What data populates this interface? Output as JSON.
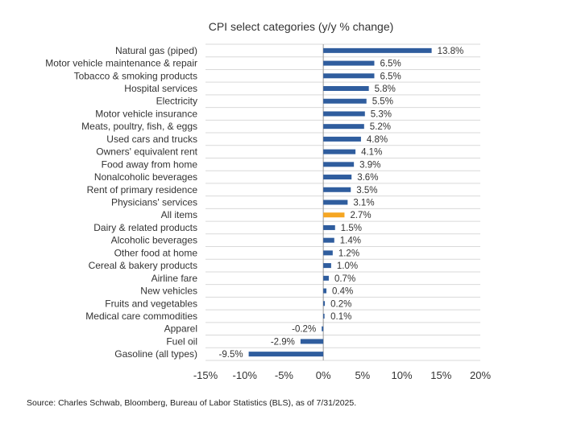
{
  "chart_data": {
    "type": "bar",
    "orientation": "horizontal",
    "title": "CPI select categories (y/y % change)",
    "categories": [
      "Natural gas (piped)",
      "Motor vehicle maintenance & repair",
      "Tobacco & smoking products",
      "Hospital services",
      "Electricity",
      "Motor vehicle insurance",
      "Meats, poultry, fish, & eggs",
      "Used cars and trucks",
      "Owners' equivalent rent",
      "Food away from home",
      "Nonalcoholic beverages",
      "Rent of primary residence",
      "Physicians' services",
      "All items",
      "Dairy & related products",
      "Alcoholic beverages",
      "Other food at home",
      "Cereal & bakery products",
      "Airline fare",
      "New vehicles",
      "Fruits and vegetables",
      "Medical care commodities",
      "Apparel",
      "Fuel oil",
      "Gasoline (all types)"
    ],
    "values": [
      13.8,
      6.5,
      6.5,
      5.8,
      5.5,
      5.3,
      5.2,
      4.8,
      4.1,
      3.9,
      3.6,
      3.5,
      3.1,
      2.7,
      1.5,
      1.4,
      1.2,
      1.0,
      0.7,
      0.4,
      0.2,
      0.1,
      -0.2,
      -2.9,
      -9.5
    ],
    "value_labels": [
      "13.8%",
      "6.5%",
      "6.5%",
      "5.8%",
      "5.5%",
      "5.3%",
      "5.2%",
      "4.8%",
      "4.1%",
      "3.9%",
      "3.6%",
      "3.5%",
      "3.1%",
      "2.7%",
      "1.5%",
      "1.4%",
      "1.2%",
      "1.0%",
      "0.7%",
      "0.4%",
      "0.2%",
      "0.1%",
      "-0.2%",
      "-2.9%",
      "-9.5%"
    ],
    "highlight_category": "All items",
    "xlim": [
      -15,
      20
    ],
    "xticks": [
      -15,
      -10,
      -5,
      0,
      5,
      10,
      15,
      20
    ],
    "xtick_labels": [
      "-15%",
      "-10%",
      "-5%",
      "0%",
      "5%",
      "10%",
      "15%",
      "20%"
    ],
    "grid": "horizontal",
    "colors": {
      "bar": "#2f5d9e",
      "highlight": "#f5a623",
      "grid": "#d9d9d9",
      "axis": "#999999"
    }
  },
  "source": "Source: Charles Schwab, Bloomberg, Bureau of Labor Statistics (BLS), as of 7/31/2025."
}
